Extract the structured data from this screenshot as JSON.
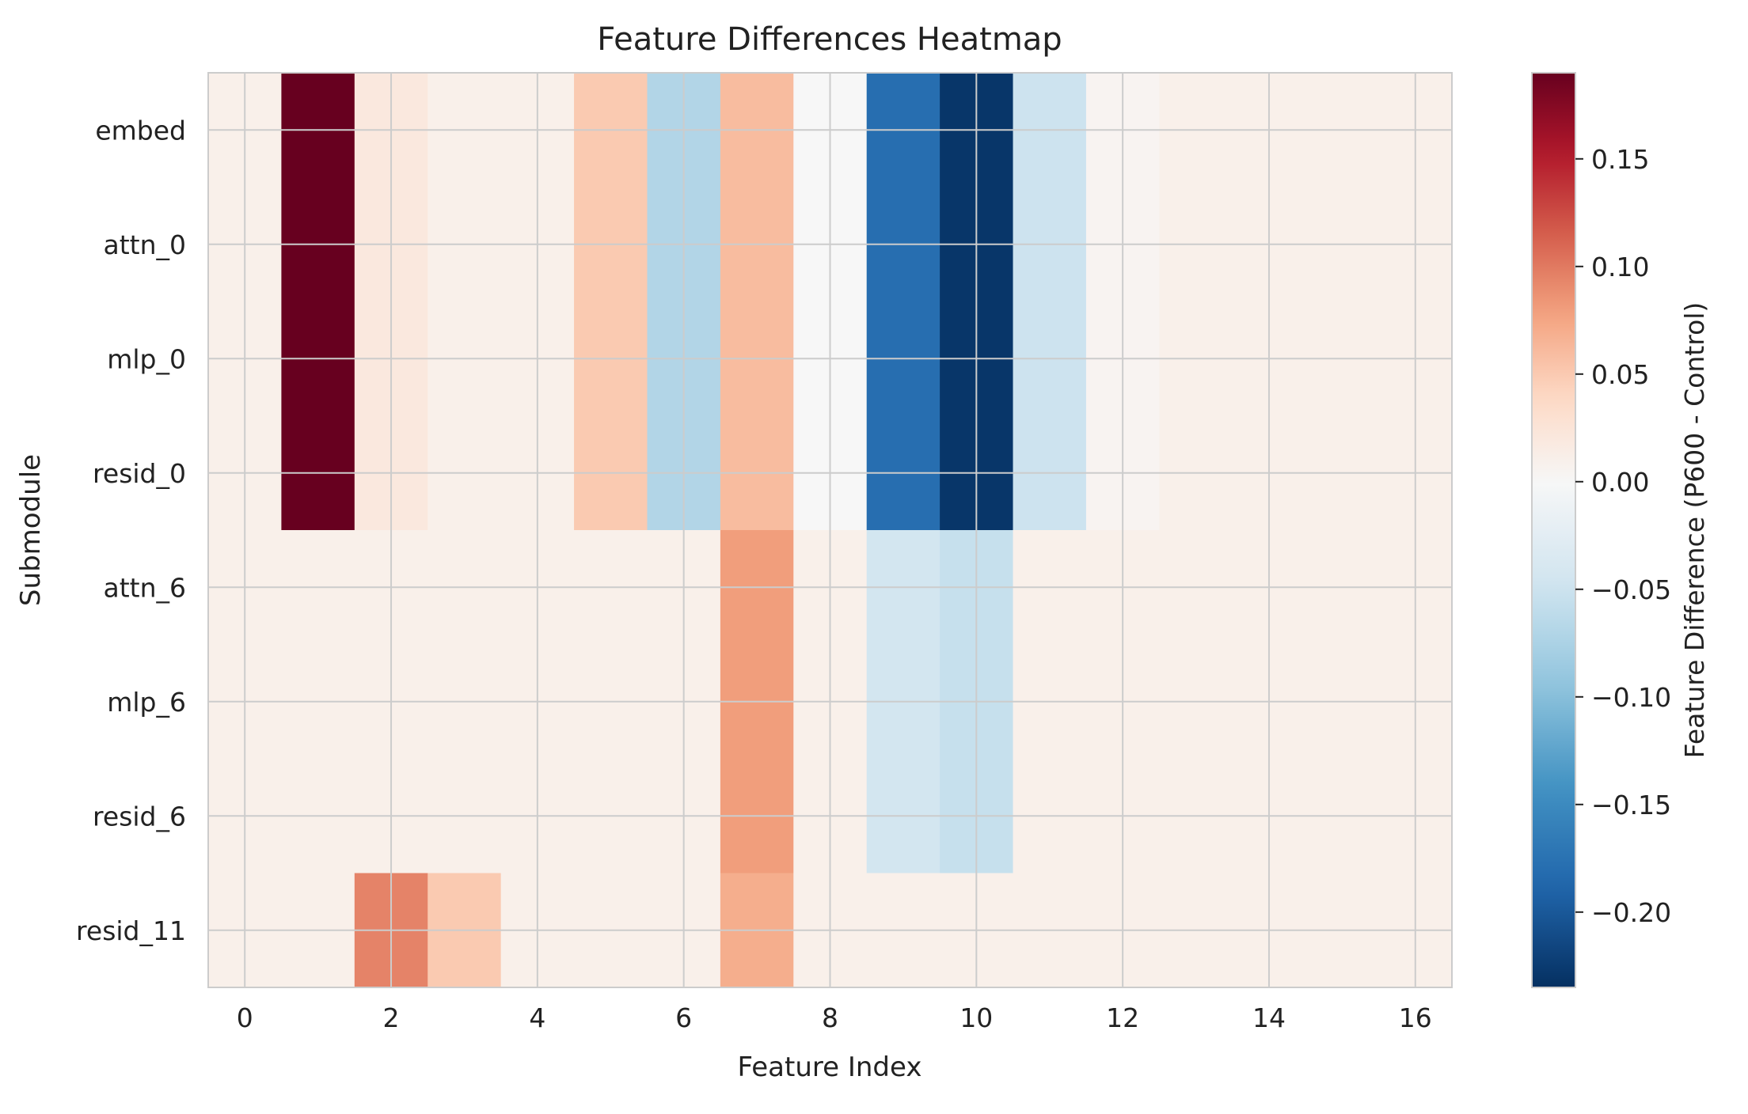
{
  "chart_data": {
    "type": "heatmap",
    "title": "Feature Differences Heatmap",
    "xlabel": "Feature Index",
    "ylabel": "Submodule",
    "colorbar_label": "Feature Difference (P600 - Control)",
    "colormap": "RdBu_r",
    "xlim": [
      -0.5,
      16.5
    ],
    "x_ticks": [
      0,
      2,
      4,
      6,
      8,
      10,
      12,
      14,
      16
    ],
    "x_tick_labels": [
      "0",
      "2",
      "4",
      "6",
      "8",
      "10",
      "12",
      "14",
      "16"
    ],
    "rows": [
      "embed",
      "attn_0",
      "mlp_0",
      "resid_0",
      "attn_6",
      "mlp_6",
      "resid_6",
      "resid_11"
    ],
    "columns": [
      0,
      1,
      2,
      3,
      4,
      5,
      6,
      7,
      8,
      9,
      10,
      11,
      12,
      13,
      14,
      15,
      16
    ],
    "values": [
      [
        0.01,
        0.19,
        0.02,
        0.01,
        0.01,
        0.05,
        -0.07,
        0.06,
        0.0,
        -0.18,
        -0.23,
        -0.05,
        0.005,
        0.01,
        0.01,
        0.01,
        0.01
      ],
      [
        0.01,
        0.19,
        0.02,
        0.01,
        0.01,
        0.05,
        -0.07,
        0.06,
        0.0,
        -0.18,
        -0.23,
        -0.05,
        0.005,
        0.01,
        0.01,
        0.01,
        0.01
      ],
      [
        0.01,
        0.19,
        0.02,
        0.01,
        0.01,
        0.05,
        -0.07,
        0.06,
        0.0,
        -0.18,
        -0.23,
        -0.05,
        0.005,
        0.01,
        0.01,
        0.01,
        0.01
      ],
      [
        0.01,
        0.19,
        0.02,
        0.01,
        0.01,
        0.05,
        -0.07,
        0.06,
        0.0,
        -0.18,
        -0.23,
        -0.05,
        0.005,
        0.01,
        0.01,
        0.01,
        0.01
      ],
      [
        0.01,
        0.01,
        0.01,
        0.01,
        0.01,
        0.01,
        0.01,
        0.08,
        0.01,
        -0.045,
        -0.055,
        0.01,
        0.01,
        0.01,
        0.01,
        0.01,
        0.01
      ],
      [
        0.01,
        0.01,
        0.01,
        0.01,
        0.01,
        0.01,
        0.01,
        0.08,
        0.01,
        -0.045,
        -0.055,
        0.01,
        0.01,
        0.01,
        0.01,
        0.01,
        0.01
      ],
      [
        0.01,
        0.01,
        0.01,
        0.01,
        0.01,
        0.01,
        0.01,
        0.08,
        0.01,
        -0.045,
        -0.055,
        0.01,
        0.01,
        0.01,
        0.01,
        0.01,
        0.01
      ],
      [
        0.01,
        0.01,
        0.095,
        0.05,
        0.01,
        0.01,
        0.01,
        0.07,
        0.01,
        0.01,
        0.01,
        0.01,
        0.01,
        0.01,
        0.01,
        0.01,
        0.01
      ]
    ],
    "colorbar_range": [
      -0.235,
      0.19
    ],
    "colorbar_ticks": [
      0.15,
      0.1,
      0.05,
      0.0,
      -0.05,
      -0.1,
      -0.15,
      -0.2
    ],
    "colorbar_tick_labels": [
      "0.15",
      "0.10",
      "0.05",
      "0.00",
      "−0.05",
      "−0.10",
      "−0.15",
      "−0.20"
    ],
    "grid": true
  }
}
